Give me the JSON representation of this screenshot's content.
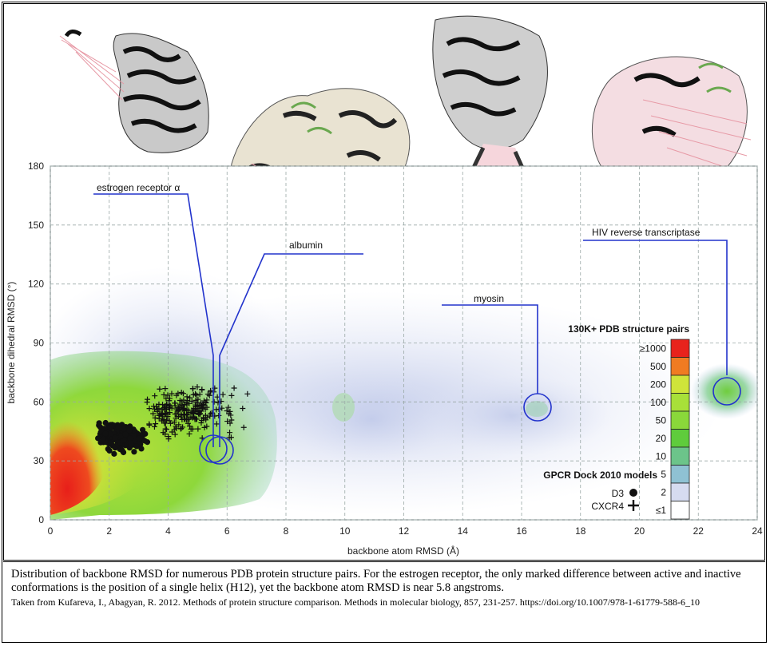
{
  "chart_data": {
    "type": "heatmap",
    "xlabel": "backbone atom RMSD (Å)",
    "ylabel": "backbone dihedral RMSD (°)",
    "xlim": [
      0,
      24
    ],
    "ylim": [
      0,
      180
    ],
    "x_ticks": [
      "0",
      "2",
      "4",
      "6",
      "8",
      "10",
      "12",
      "14",
      "16",
      "18",
      "20",
      "22",
      "24"
    ],
    "y_ticks": [
      "0",
      "30",
      "60",
      "90",
      "120",
      "150",
      "180"
    ],
    "grid": true,
    "colorbar": {
      "title": "130K+ PDB structure pairs",
      "labels": [
        "≥1000",
        "500",
        "200",
        "100",
        "50",
        "20",
        "10",
        "5",
        "2",
        "≤1"
      ],
      "colors": [
        "#e8231c",
        "#f07b22",
        "#cfe43a",
        "#a8e039",
        "#8ad83a",
        "#5fcc3c",
        "#6cc48a",
        "#8fc1d3",
        "#d6dbf0",
        "#ffffff"
      ]
    },
    "models_legend": {
      "title": "GPCR Dock 2010 models",
      "entries": [
        {
          "label": "D3",
          "marker": "circle"
        },
        {
          "label": "CXCR4",
          "marker": "plus"
        }
      ]
    },
    "annotations": [
      {
        "label": "estrogen receptor α",
        "x": 5.6,
        "y": 35
      },
      {
        "label": "albumin",
        "x": 5.7,
        "y": 36
      },
      {
        "label": "myosin",
        "x": 16.5,
        "y": 57
      },
      {
        "label": "HIV reverse transcriptase",
        "x": 23.0,
        "y": 66
      }
    ],
    "density_regions": [
      {
        "level": "≥1000",
        "x_range": [
          0,
          1.8
        ],
        "y_range": [
          0,
          55
        ]
      },
      {
        "level": "200",
        "x_range": [
          0.3,
          3.5
        ],
        "y_range": [
          5,
          75
        ]
      },
      {
        "level": "50",
        "x_range": [
          0.2,
          8
        ],
        "y_range": [
          0,
          85
        ]
      },
      {
        "level": "2",
        "x_range": [
          0,
          24
        ],
        "y_range": [
          0,
          110
        ]
      },
      {
        "level": "20",
        "x_range": [
          22,
          24
        ],
        "y_range": [
          55,
          75
        ]
      }
    ],
    "series": [
      {
        "name": "D3",
        "marker": "circle",
        "x_range": [
          1.6,
          3.4
        ],
        "y_range": [
          32,
          50
        ]
      },
      {
        "name": "CXCR4",
        "marker": "plus",
        "x_range": [
          3.2,
          7.5
        ],
        "y_range": [
          35,
          68
        ]
      }
    ]
  },
  "caption": {
    "main": "Distribution of backbone RMSD for numerous PDB protein structure pairs. For the estrogen receptor, the only marked difference between active and inactive conformations is the position of a single helix (H12), yet the backbone atom RMSD is near 5.8 angstroms.",
    "source": "Taken from Kufareva, I., Abagyan, R. 2012. Methods of protein structure comparison. Methods in molecular biology, 857, 231-257. https://doi.org/10.1007/978-1-61779-588-6_10"
  }
}
